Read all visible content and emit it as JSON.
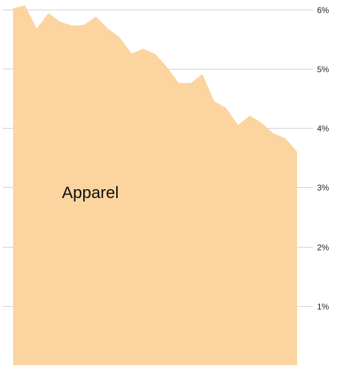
{
  "chart_data": {
    "type": "area",
    "title": "",
    "xlabel": "",
    "ylabel": "",
    "ylim": [
      0,
      6
    ],
    "yticks": [
      1,
      2,
      3,
      4,
      5,
      6
    ],
    "ytick_labels": [
      "1%",
      "2%",
      "3%",
      "4%",
      "5%",
      "6%"
    ],
    "grid": true,
    "colors": {
      "area": "#fcd49f",
      "grid": "#d0d0d0"
    },
    "series": [
      {
        "name": "Apparel",
        "values": [
          6.02,
          6.07,
          5.68,
          5.94,
          5.79,
          5.73,
          5.74,
          5.88,
          5.68,
          5.53,
          5.26,
          5.34,
          5.25,
          5.03,
          4.76,
          4.76,
          4.91,
          4.45,
          4.34,
          4.05,
          4.21,
          4.09,
          3.91,
          3.83,
          3.6
        ]
      }
    ]
  }
}
